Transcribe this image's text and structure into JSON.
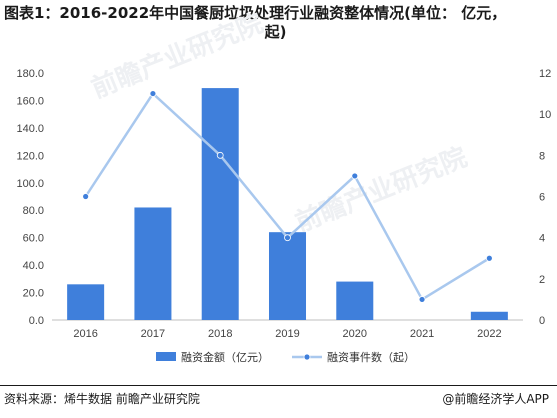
{
  "title_line1": "图表1：2016-2022年中国餐厨垃圾处理行业融资整体情况(单位： 亿元，",
  "title_line2": "起)",
  "source": "资料来源：烯牛数据 前瞻产业研究院",
  "brand": "@前瞻经济学人APP",
  "watermark": "前瞻产业研究院",
  "colors": {
    "bar": "#3f7fdb",
    "line": "#a9c8ee",
    "axis": "#bfbfbf",
    "text": "#444444"
  },
  "chart_data": {
    "type": "bar",
    "categories": [
      "2016",
      "2017",
      "2018",
      "2019",
      "2020",
      "2021",
      "2022"
    ],
    "series": [
      {
        "name": "融资金额（亿元）",
        "type": "bar",
        "axis": "left",
        "values": [
          26,
          82,
          169,
          64,
          28,
          0,
          6
        ]
      },
      {
        "name": "融资事件数（起）",
        "type": "line",
        "axis": "right",
        "values": [
          6,
          11,
          8,
          4,
          7,
          1,
          3
        ]
      }
    ],
    "y_left": {
      "min": 0,
      "max": 180,
      "step": 20,
      "ticks": [
        "0.0",
        "20.0",
        "40.0",
        "60.0",
        "80.0",
        "100.0",
        "120.0",
        "140.0",
        "160.0",
        "180.0"
      ]
    },
    "y_right": {
      "min": 0,
      "max": 12,
      "step": 2,
      "ticks": [
        "0",
        "2",
        "4",
        "6",
        "8",
        "10",
        "12"
      ]
    },
    "grid": false,
    "legend_position": "bottom"
  }
}
